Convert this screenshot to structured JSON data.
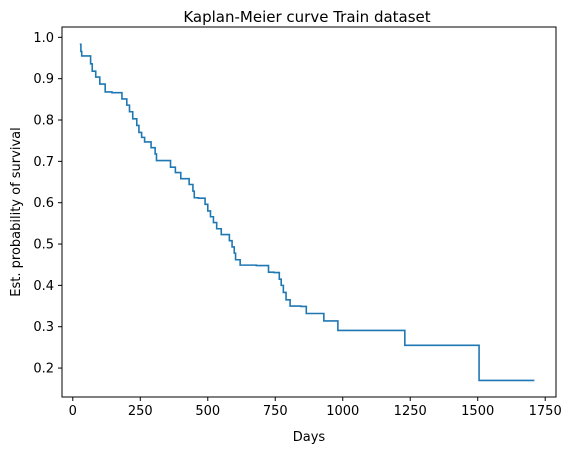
{
  "chart_data": {
    "type": "line",
    "step": "post",
    "title": "Kaplan-Meier curve Train dataset",
    "xlabel": "Days",
    "ylabel": "Est. probability of survival",
    "xlim": [
      -40,
      1790
    ],
    "ylim": [
      0.13,
      1.025
    ],
    "xticks": [
      0,
      250,
      500,
      750,
      1000,
      1250,
      1500,
      1750
    ],
    "yticks": [
      0.2,
      0.3,
      0.4,
      0.5,
      0.6,
      0.7,
      0.8,
      0.9,
      1.0
    ],
    "xtick_labels": [
      "0",
      "250",
      "500",
      "750",
      "1000",
      "1250",
      "1500",
      "1750"
    ],
    "ytick_labels": [
      "0.2",
      "0.3",
      "0.4",
      "0.5",
      "0.6",
      "0.7",
      "0.8",
      "0.9",
      "1.0"
    ],
    "grid": false,
    "color": "#1f77b4",
    "series": [
      {
        "x": [
          26,
          30,
          33,
          66,
          72,
          85,
          100,
          120,
          145,
          182,
          200,
          210,
          222,
          237,
          245,
          255,
          266,
          290,
          305,
          310,
          362,
          380,
          400,
          431,
          445,
          450,
          465,
          490,
          500,
          510,
          521,
          533,
          550,
          580,
          590,
          598,
          603,
          620,
          680,
          725,
          745,
          765,
          772,
          780,
          790,
          805,
          845,
          865,
          930,
          982,
          1230,
          1505,
          1710
        ],
        "y": [
          0.983,
          0.966,
          0.955,
          0.936,
          0.918,
          0.904,
          0.887,
          0.868,
          0.866,
          0.851,
          0.836,
          0.82,
          0.803,
          0.787,
          0.77,
          0.758,
          0.747,
          0.733,
          0.718,
          0.702,
          0.686,
          0.673,
          0.658,
          0.644,
          0.628,
          0.612,
          0.611,
          0.596,
          0.58,
          0.566,
          0.552,
          0.537,
          0.523,
          0.508,
          0.493,
          0.478,
          0.462,
          0.449,
          0.448,
          0.432,
          0.431,
          0.415,
          0.4,
          0.383,
          0.365,
          0.35,
          0.349,
          0.332,
          0.314,
          0.291,
          0.255,
          0.17,
          0.17
        ]
      }
    ]
  }
}
